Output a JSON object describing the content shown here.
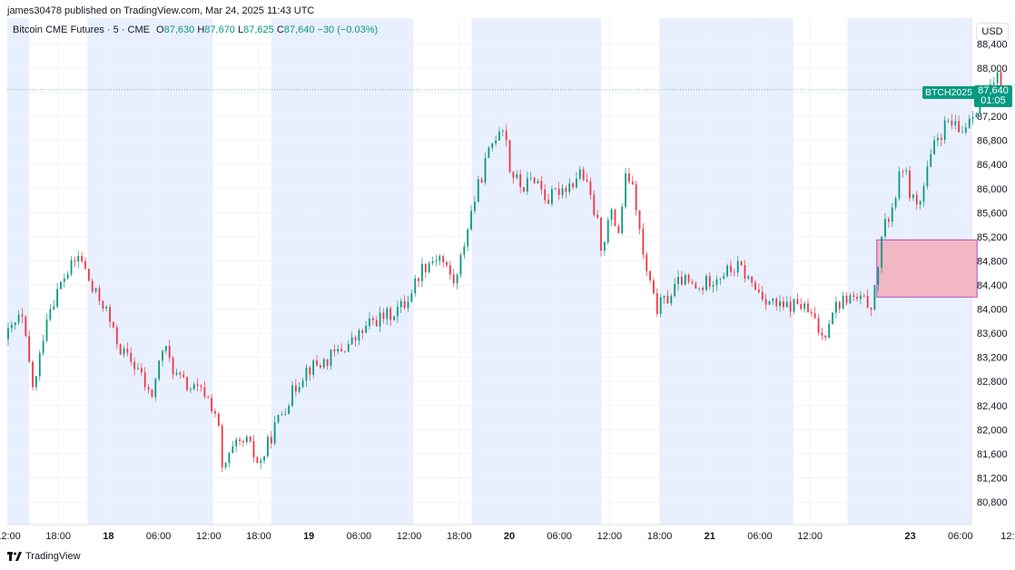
{
  "header": {
    "published": "james30478 published on TradingView.com, Mar 24, 2025 11:43 UTC"
  },
  "legend": {
    "symbol": "Bitcoin CME Futures · 5 · CME",
    "o_label": "O",
    "o_value": "87,630",
    "h_label": "H",
    "h_value": "87,670",
    "l_label": "L",
    "l_value": "87,625",
    "c_label": "C",
    "c_value": "87,640",
    "change": "−30 (−0.03%)"
  },
  "price_axis": {
    "currency": "USD",
    "last_price": "87,640",
    "countdown": "01:05",
    "symbol_tag": "BTCH2025"
  },
  "footer": {
    "brand": "TradingView"
  },
  "colors": {
    "up": "#089981",
    "down": "#f23645",
    "session_shade": "#e8efff",
    "zone_fill": "#f3b5c2",
    "zone_border": "#9c27b0"
  },
  "chart_data": {
    "type": "candlestick",
    "ylim": [
      80400,
      88500
    ],
    "y_ticks": [
      80800,
      81200,
      81600,
      82000,
      82400,
      82800,
      83200,
      83600,
      84000,
      84400,
      84800,
      85200,
      85600,
      86000,
      86400,
      86800,
      87200,
      87600,
      88000,
      88400
    ],
    "y_tick_labels": [
      "80,800",
      "81,200",
      "81,600",
      "82,000",
      "82,400",
      "82,800",
      "83,200",
      "83,600",
      "84,000",
      "84,400",
      "84,800",
      "85,200",
      "85,600",
      "86,000",
      "86,400",
      "86,800",
      "87,200",
      "87,600",
      "88,000",
      "88,400"
    ],
    "x_axis_hours": [
      0,
      48
    ],
    "x_ticks": [
      {
        "label": "12:00",
        "h": 0,
        "bold": false
      },
      {
        "label": "18:00",
        "h": 6,
        "bold": false
      },
      {
        "label": "18",
        "h": 12,
        "bold": true
      },
      {
        "label": "06:00",
        "h": 18,
        "bold": false
      },
      {
        "label": "12:00",
        "h": 24,
        "bold": false
      },
      {
        "label": "18:00",
        "h": 30,
        "bold": false
      },
      {
        "label": "19",
        "h": 36,
        "bold": true
      },
      {
        "label": "06:00",
        "h": 42,
        "bold": false
      },
      {
        "label": "12:00",
        "h": 48,
        "bold": false
      },
      {
        "label": "18:00",
        "h": 54,
        "bold": false
      },
      {
        "label": "20",
        "h": 60,
        "bold": true
      },
      {
        "label": "06:00",
        "h": 66,
        "bold": false
      },
      {
        "label": "12:00",
        "h": 72,
        "bold": false
      },
      {
        "label": "18:00",
        "h": 78,
        "bold": false
      },
      {
        "label": "21",
        "h": 84,
        "bold": true
      },
      {
        "label": "06:00",
        "h": 90,
        "bold": false
      },
      {
        "label": "12:00",
        "h": 96,
        "bold": false
      },
      {
        "label": "23",
        "h": 108,
        "bold": true
      },
      {
        "label": "06:00",
        "h": 114,
        "bold": false
      },
      {
        "label": "12:0",
        "h": 120,
        "bold": false
      }
    ],
    "sessions": [
      [
        -1,
        2.5
      ],
      [
        9.5,
        24.5
      ],
      [
        31.5,
        48.5
      ],
      [
        55.5,
        71
      ],
      [
        78,
        94
      ],
      [
        100.5,
        115.5
      ]
    ],
    "price_path": [
      [
        0,
        83500
      ],
      [
        2,
        83900
      ],
      [
        3.5,
        82600
      ],
      [
        5,
        83900
      ],
      [
        7,
        84500
      ],
      [
        9,
        84900
      ],
      [
        10.5,
        84300
      ],
      [
        12,
        84050
      ],
      [
        13,
        83600
      ],
      [
        14,
        83300
      ],
      [
        16,
        83000
      ],
      [
        17.5,
        82500
      ],
      [
        19,
        83400
      ],
      [
        20.5,
        82900
      ],
      [
        22,
        82700
      ],
      [
        24,
        82600
      ],
      [
        25.5,
        82200
      ],
      [
        26,
        81300
      ],
      [
        27.5,
        81700
      ],
      [
        29,
        81800
      ],
      [
        30.5,
        81400
      ],
      [
        32.5,
        82100
      ],
      [
        34,
        82500
      ],
      [
        36,
        83000
      ],
      [
        38,
        83100
      ],
      [
        40,
        83300
      ],
      [
        42,
        83500
      ],
      [
        44,
        83800
      ],
      [
        46,
        83900
      ],
      [
        48,
        84100
      ],
      [
        50,
        84700
      ],
      [
        52,
        84900
      ],
      [
        54,
        84400
      ],
      [
        55,
        85100
      ],
      [
        56,
        85700
      ],
      [
        57.5,
        86400
      ],
      [
        58.5,
        86800
      ],
      [
        59.5,
        87100
      ],
      [
        60,
        86900
      ],
      [
        60.5,
        86300
      ],
      [
        62,
        86000
      ],
      [
        63.5,
        86200
      ],
      [
        65,
        85800
      ],
      [
        66.5,
        86000
      ],
      [
        68,
        86100
      ],
      [
        69,
        86300
      ],
      [
        70,
        85900
      ],
      [
        71,
        85400
      ],
      [
        71.5,
        85000
      ],
      [
        72.5,
        85600
      ],
      [
        73.5,
        85300
      ],
      [
        74.5,
        86300
      ],
      [
        75.5,
        85800
      ],
      [
        76.5,
        84800
      ],
      [
        78,
        84000
      ],
      [
        79.5,
        84200
      ],
      [
        81,
        84500
      ],
      [
        83,
        84300
      ],
      [
        84.5,
        84500
      ],
      [
        86,
        84600
      ],
      [
        88,
        84700
      ],
      [
        89.5,
        84400
      ],
      [
        91,
        84200
      ],
      [
        93,
        84000
      ],
      [
        95,
        84100
      ],
      [
        96.5,
        83900
      ],
      [
        98,
        83500
      ],
      [
        99,
        84000
      ],
      [
        101,
        84200
      ],
      [
        103,
        84100
      ],
      [
        104,
        84100
      ],
      [
        105,
        85200
      ],
      [
        106.5,
        85800
      ],
      [
        107.5,
        86400
      ],
      [
        108.5,
        85900
      ],
      [
        109.5,
        85700
      ],
      [
        110.5,
        86300
      ],
      [
        111.5,
        86800
      ],
      [
        113,
        87100
      ],
      [
        114.5,
        86900
      ],
      [
        115.5,
        87200
      ],
      [
        117,
        87500
      ],
      [
        118,
        87600
      ],
      [
        119,
        87850
      ],
      [
        119.5,
        87640
      ]
    ],
    "zone": {
      "h_start": 104,
      "h_end": 116,
      "y_high": 85150,
      "y_low": 84200
    },
    "last_price_line": 87640
  }
}
